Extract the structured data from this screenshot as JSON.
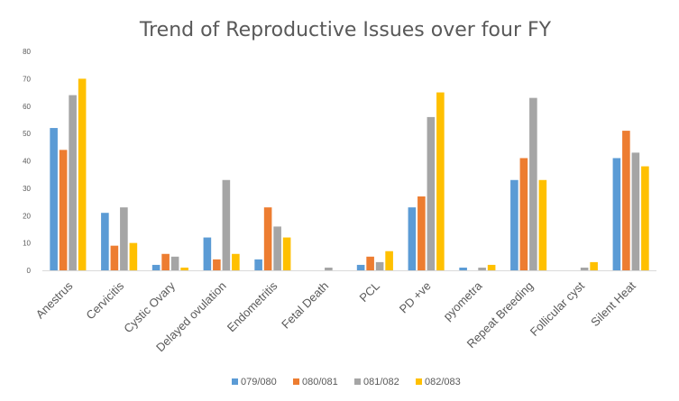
{
  "chart_data": {
    "type": "bar",
    "title": "Trend of Reproductive Issues over four FY",
    "xlabel": "",
    "ylabel": "",
    "ylim": [
      0,
      80
    ],
    "yticks": [
      0,
      10,
      20,
      30,
      40,
      50,
      60,
      70,
      80
    ],
    "grid": false,
    "legend_position": "bottom",
    "categories": [
      "Anestrus",
      "Cervicitis",
      "Cystic Ovary",
      "Delayed ovulation",
      "Endometritis",
      "Fetal Death",
      "PCL",
      "PD +ve",
      "pyometra",
      "Repeat Breeding",
      "Follicular cyst",
      "Silent Heat"
    ],
    "series": [
      {
        "name": "079/080",
        "color": "#5B9BD5",
        "values": [
          52,
          21,
          2,
          12,
          4,
          0,
          2,
          23,
          1,
          33,
          0,
          41
        ]
      },
      {
        "name": "080/081",
        "color": "#ED7D31",
        "values": [
          44,
          9,
          6,
          4,
          23,
          0,
          5,
          27,
          0,
          41,
          0,
          51
        ]
      },
      {
        "name": "081/082",
        "color": "#A5A5A5",
        "values": [
          64,
          23,
          5,
          33,
          16,
          1,
          3,
          56,
          1,
          63,
          1,
          43
        ]
      },
      {
        "name": "082/083",
        "color": "#FFC000",
        "values": [
          70,
          10,
          1,
          6,
          12,
          0,
          7,
          65,
          2,
          33,
          3,
          38
        ]
      }
    ]
  }
}
